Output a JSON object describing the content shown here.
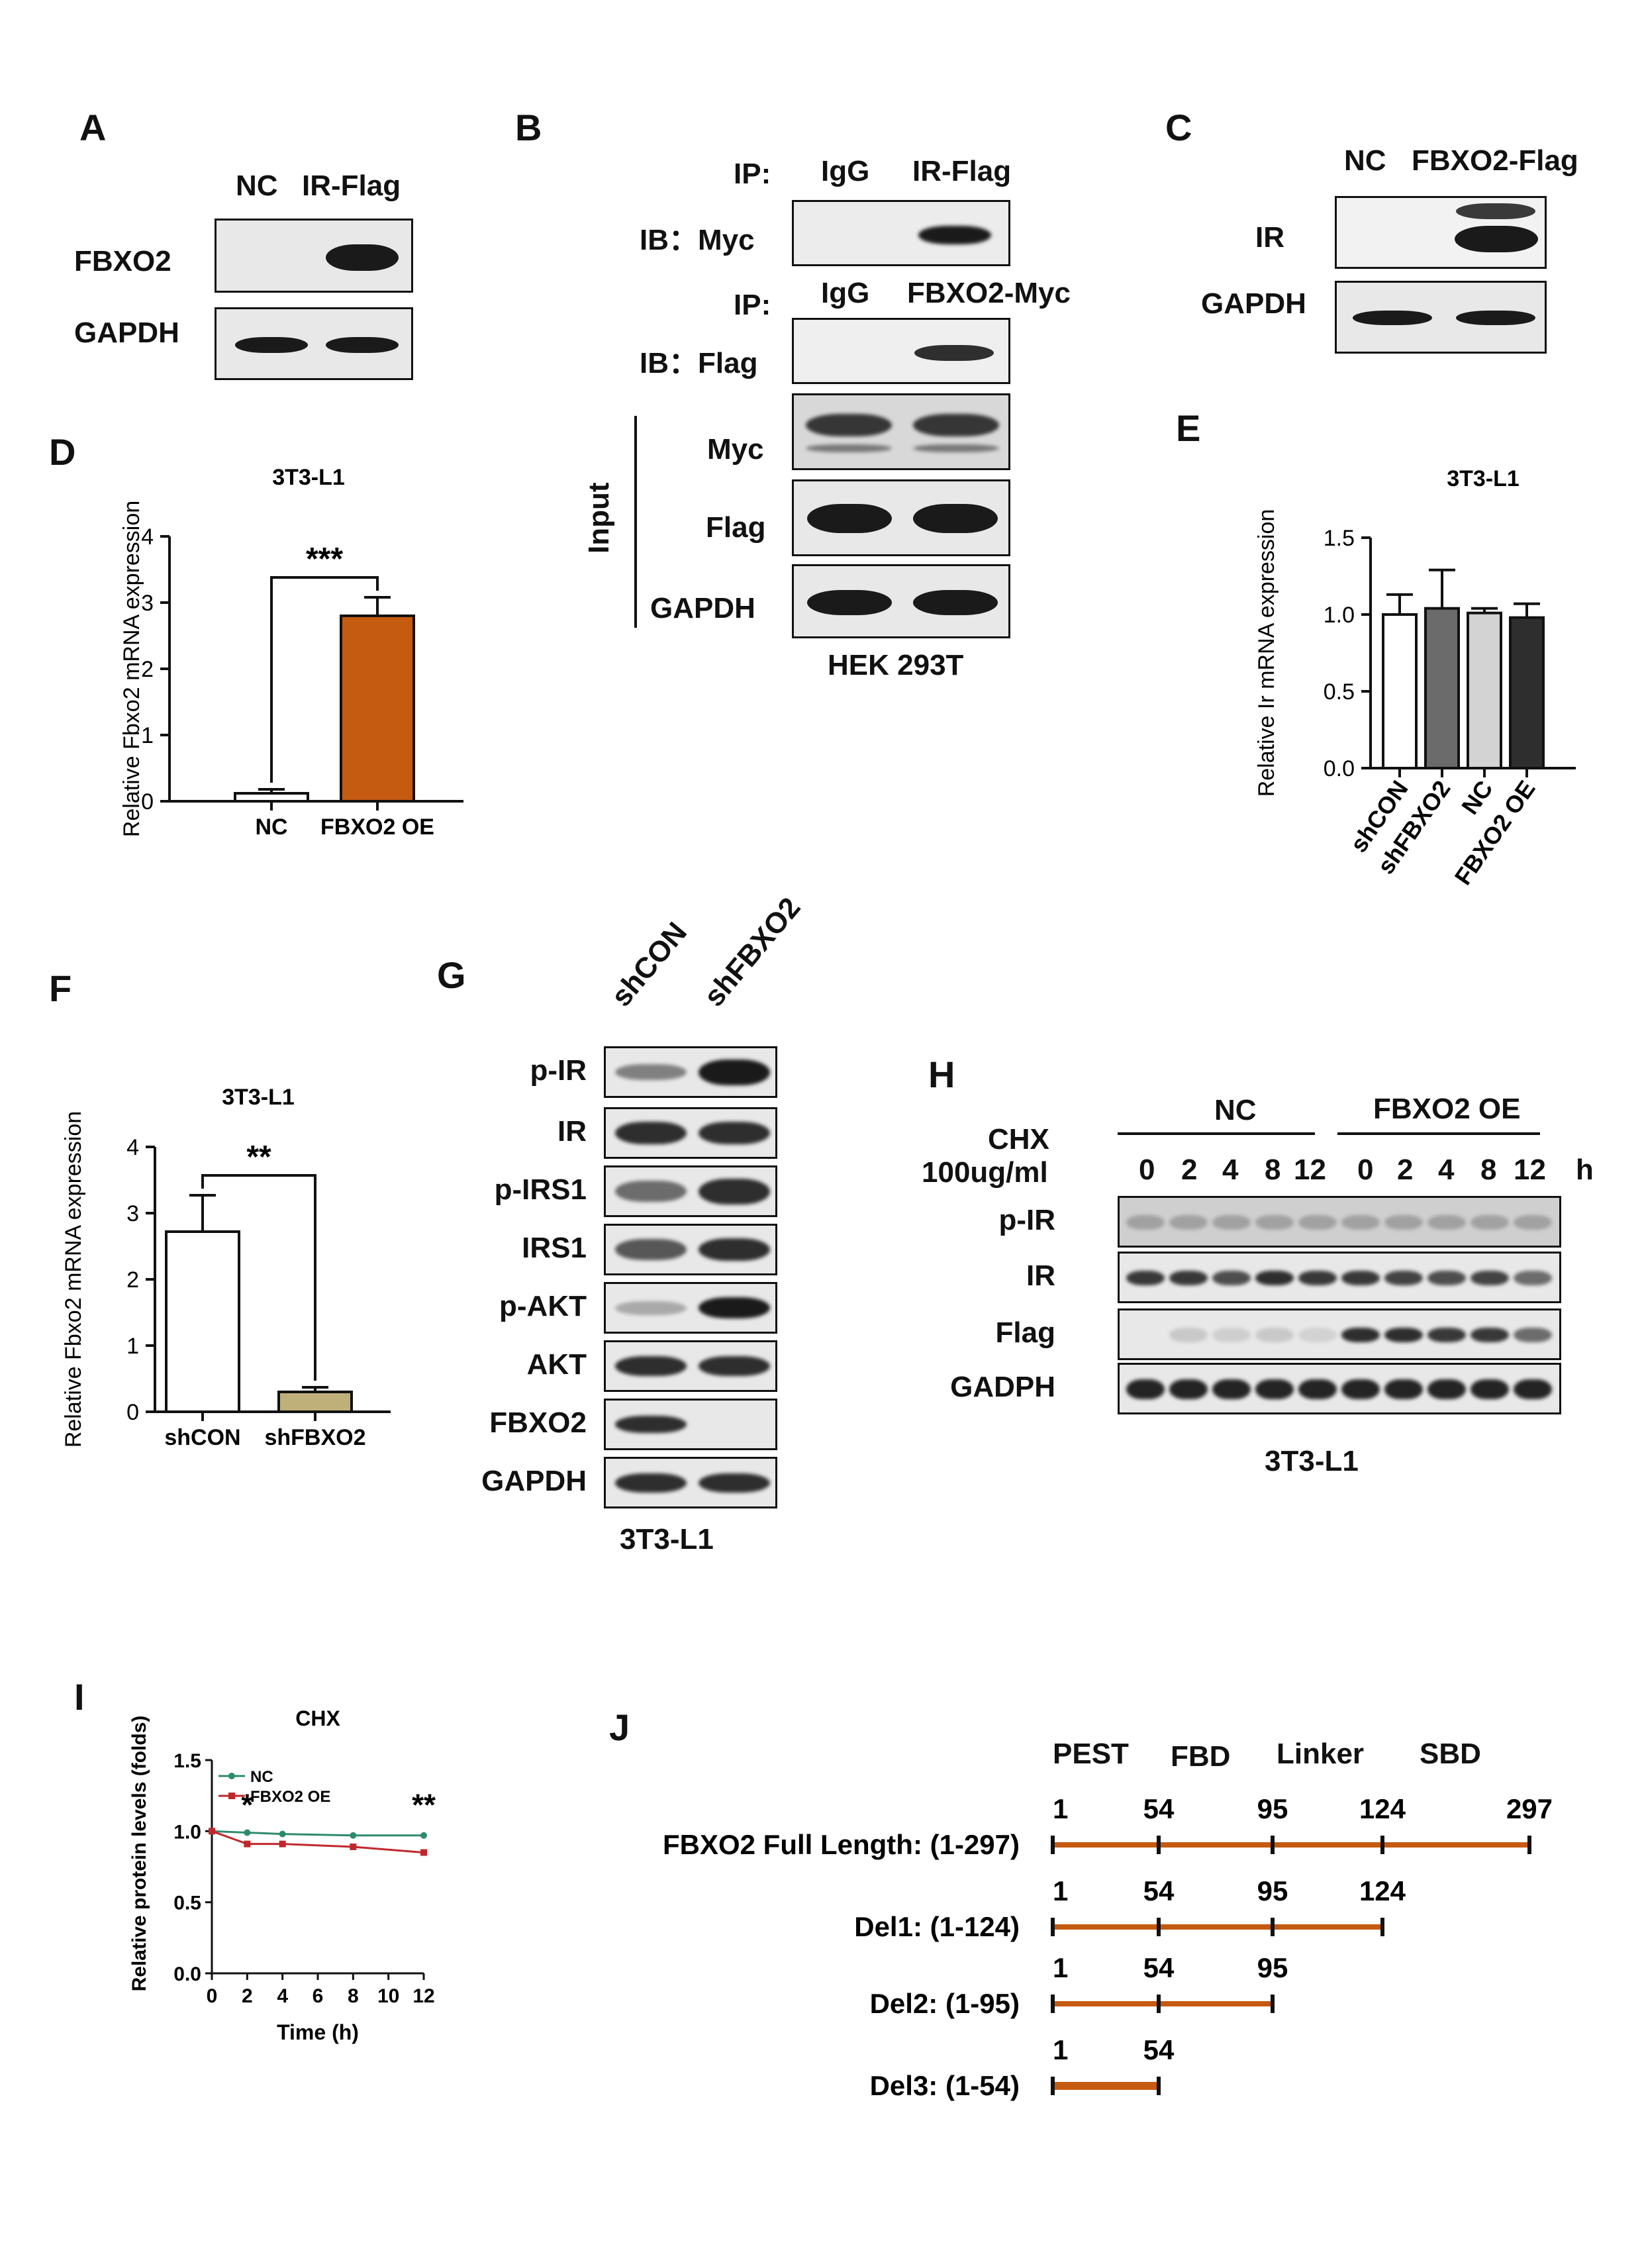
{
  "panels": {
    "A": {
      "label": "A",
      "lanes": [
        "NC",
        "IR-Flag"
      ],
      "rows": [
        "FBXO2",
        "GAPDH"
      ]
    },
    "B": {
      "label": "B",
      "ip1_prefix": "IP:",
      "ip1_lanes": [
        "IgG",
        "IR-Flag"
      ],
      "ib1": "IB：Myc",
      "ip2_prefix": "IP:",
      "ip2_lanes": [
        "IgG",
        "FBXO2-Myc"
      ],
      "ib2": "IB：Flag",
      "input_label": "Input",
      "input_rows": [
        "Myc",
        "Flag",
        "GAPDH"
      ],
      "cell_line": "HEK 293T"
    },
    "C": {
      "label": "C",
      "lanes": [
        "NC",
        "FBXO2-Flag"
      ],
      "rows": [
        "IR",
        "GAPDH"
      ]
    },
    "G": {
      "label": "G",
      "lanes": [
        "shCON",
        "shFBXO2"
      ],
      "rows": [
        "p-IR",
        "IR",
        "p-IRS1",
        "IRS1",
        "p-AKT",
        "AKT",
        "FBXO2",
        "GAPDH"
      ],
      "cell_line": "3T3-L1"
    },
    "H": {
      "label": "H",
      "groups": [
        "NC",
        "FBXO2 OE"
      ],
      "treatment_line1": "CHX",
      "treatment_line2": "100ug/ml",
      "timepoints": [
        "0",
        "2",
        "4",
        "8",
        "12",
        "0",
        "2",
        "4",
        "8",
        "12"
      ],
      "time_unit": "h",
      "rows": [
        "p-IR",
        "IR",
        "Flag",
        "GADPH"
      ],
      "cell_line": "3T3-L1"
    },
    "J": {
      "label": "J",
      "domains": [
        "PEST",
        "FBD",
        "Linker",
        "SBD"
      ],
      "constructs": [
        {
          "name": "FBXO2 Full Length: (1-297)",
          "ticks": [
            "1",
            "54",
            "95",
            "124",
            "297"
          ]
        },
        {
          "name": "Del1: (1-124)",
          "ticks": [
            "1",
            "54",
            "95",
            "124"
          ]
        },
        {
          "name": "Del2: (1-95)",
          "ticks": [
            "1",
            "54",
            "95"
          ]
        },
        {
          "name": "Del3: (1-54)",
          "ticks": [
            "1",
            "54"
          ]
        }
      ],
      "color": "#C55A11"
    }
  },
  "chart_data": [
    {
      "panel": "D",
      "type": "bar",
      "title": "3T3-L1",
      "ylabel": "Relative Fbxo2 mRNA expression",
      "categories": [
        "NC",
        "FBXO2 OE"
      ],
      "values": [
        0.12,
        2.8
      ],
      "errors": [
        0.06,
        0.28
      ],
      "colors": [
        "#ffffff",
        "#C55A11"
      ],
      "ylim": [
        0,
        4
      ],
      "yticks": [
        "0",
        "1",
        "2",
        "3",
        "4"
      ],
      "significance": "***"
    },
    {
      "panel": "E",
      "type": "bar",
      "title": "3T3-L1",
      "ylabel": "Relative Ir mRNA expression",
      "categories": [
        "shCON",
        "shFBXO2",
        "NC",
        "FBXO2 OE"
      ],
      "values": [
        1.0,
        1.04,
        1.01,
        0.98
      ],
      "errors": [
        0.13,
        0.25,
        0.03,
        0.09
      ],
      "colors": [
        "#ffffff",
        "#6b6b6b",
        "#d3d3d3",
        "#2e2e2e"
      ],
      "ylim": [
        0,
        1.5
      ],
      "yticks": [
        "0.0",
        "0.5",
        "1.0",
        "1.5"
      ]
    },
    {
      "panel": "F",
      "type": "bar",
      "title": "3T3-L1",
      "ylabel": "Relative Fbxo2 mRNA expression",
      "categories": [
        "shCON",
        "shFBXO2"
      ],
      "values": [
        2.72,
        0.3
      ],
      "errors": [
        0.55,
        0.07
      ],
      "colors": [
        "#ffffff",
        "#BFB07A"
      ],
      "ylim": [
        0,
        4
      ],
      "yticks": [
        "0",
        "1",
        "2",
        "3",
        "4"
      ],
      "significance": "**"
    },
    {
      "panel": "I",
      "type": "line",
      "title": "CHX",
      "xlabel": "Time (h)",
      "ylabel": "Relative protein levels (folds)",
      "x": [
        0,
        2,
        4,
        8,
        12
      ],
      "series": [
        {
          "name": "NC",
          "values": [
            1.0,
            0.99,
            0.98,
            0.97,
            0.97
          ],
          "color": "#2E8B6A"
        },
        {
          "name": "FBXO2 OE",
          "values": [
            1.0,
            0.91,
            0.91,
            0.89,
            0.85
          ],
          "color": "#C0272D"
        }
      ],
      "xticks": [
        "0",
        "2",
        "4",
        "6",
        "8",
        "10",
        "12"
      ],
      "ylim": [
        0,
        1.5
      ],
      "yticks": [
        "0.0",
        "0.5",
        "1.0",
        "1.5"
      ],
      "significance": [
        {
          "x": 2,
          "text": "*"
        },
        {
          "x": 12,
          "text": "**"
        }
      ]
    }
  ]
}
